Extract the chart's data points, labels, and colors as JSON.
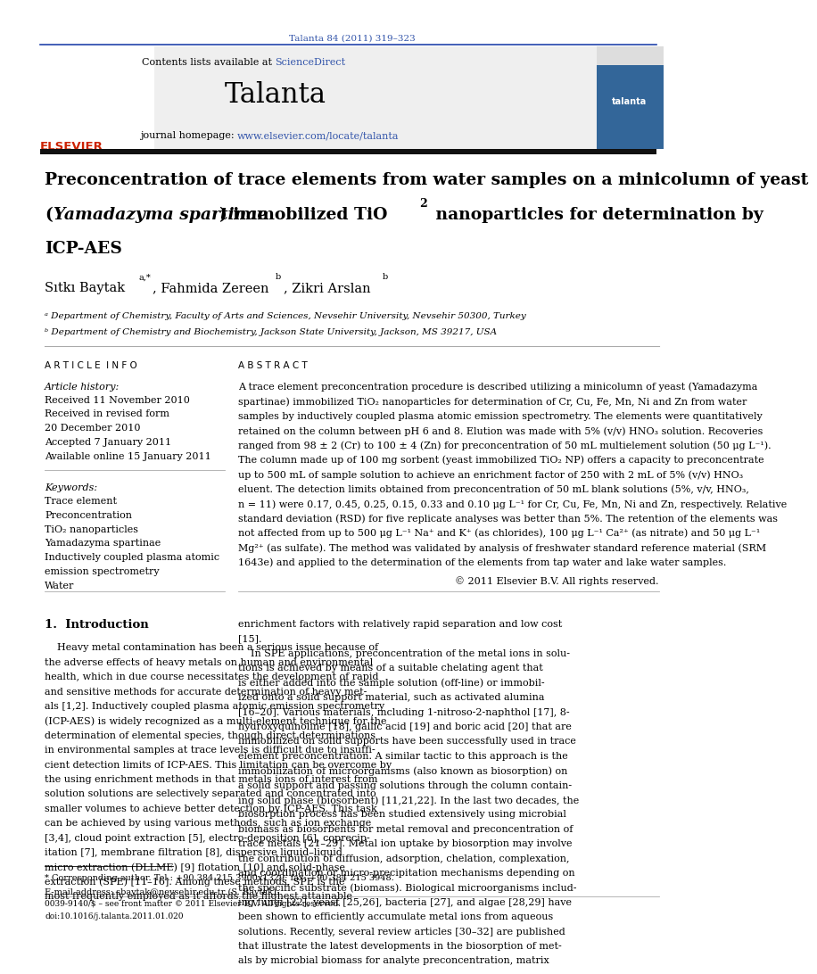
{
  "page_width": 9.92,
  "page_height": 13.23,
  "background_color": "#ffffff",
  "journal_ref": "Talanta 84 (2011) 319–323",
  "journal_ref_color": "#3355aa",
  "header_bg": "#efefef",
  "contents_line": "Contents lists available at ScienceDirect",
  "sciencedirect_color": "#3355aa",
  "journal_name": "Talanta",
  "journal_homepage_prefix": "journal homepage: ",
  "journal_homepage_url": "www.elsevier.com/locate/talanta",
  "title_line1": "Preconcentration of trace elements from water samples on a minicolumn of yeast",
  "title_line2a": "(",
  "title_line2b": "Yamadazyma spartinae",
  "title_line2c": ") immobilized TiO",
  "title_line2_sub": "2",
  "title_line2d": " nanoparticles for determination by",
  "title_line3": "ICP-AES",
  "author1": "Sıtkı Baytak",
  "author1_sup": "a,*",
  "author2": ", Fahmida Zereen",
  "author2_sup": "b",
  "author3": ", Zikri Arslan",
  "author3_sup": "b",
  "affil_a": "ᵃ Department of Chemistry, Faculty of Arts and Sciences, Nevsehir University, Nevsehir 50300, Turkey",
  "affil_b": "ᵇ Department of Chemistry and Biochemistry, Jackson State University, Jackson, MS 39217, USA",
  "article_info_header": "A R T I C L E  I N F O",
  "abstract_header": "A B S T R A C T",
  "article_history_label": "Article history:",
  "received1": "Received 11 November 2010",
  "revised": "Received in revised form",
  "revised2": "20 December 2010",
  "accepted": "Accepted 7 January 2011",
  "available": "Available online 15 January 2011",
  "keywords_label": "Keywords:",
  "keywords": [
    "Trace element",
    "Preconcentration",
    "TiO₂ nanoparticles",
    "Yamadazyma spartinae",
    "Inductively coupled plasma atomic",
    "emission spectrometry",
    "Water"
  ],
  "abstract_lines": [
    "A trace element preconcentration procedure is described utilizing a minicolumn of yeast (Yamadazyma",
    "spartinae) immobilized TiO₂ nanoparticles for determination of Cr, Cu, Fe, Mn, Ni and Zn from water",
    "samples by inductively coupled plasma atomic emission spectrometry. The elements were quantitatively",
    "retained on the column between pH 6 and 8. Elution was made with 5% (v/v) HNO₃ solution. Recoveries",
    "ranged from 98 ± 2 (Cr) to 100 ± 4 (Zn) for preconcentration of 50 mL multielement solution (50 μg L⁻¹).",
    "The column made up of 100 mg sorbent (yeast immobilized TiO₂ NP) offers a capacity to preconcentrate",
    "up to 500 mL of sample solution to achieve an enrichment factor of 250 with 2 mL of 5% (v/v) HNO₃",
    "eluent. The detection limits obtained from preconcentration of 50 mL blank solutions (5%, v/v, HNO₃,",
    "n = 11) were 0.17, 0.45, 0.25, 0.15, 0.33 and 0.10 μg L⁻¹ for Cr, Cu, Fe, Mn, Ni and Zn, respectively. Relative",
    "standard deviation (RSD) for five replicate analyses was better than 5%. The retention of the elements was",
    "not affected from up to 500 μg L⁻¹ Na⁺ and K⁺ (as chlorides), 100 μg L⁻¹ Ca²⁺ (as nitrate) and 50 μg L⁻¹",
    "Mg²⁺ (as sulfate). The method was validated by analysis of freshwater standard reference material (SRM",
    "1643e) and applied to the determination of the elements from tap water and lake water samples."
  ],
  "copyright": "© 2011 Elsevier B.V. All rights reserved.",
  "intro_header": "1.  Introduction",
  "intro_left_lines": [
    "    Heavy metal contamination has been a serious issue because of",
    "the adverse effects of heavy metals on human and environmental",
    "health, which in due course necessitates the development of rapid",
    "and sensitive methods for accurate determination of heavy met-",
    "als [1,2]. Inductively coupled plasma atomic emission spectrometry",
    "(ICP-AES) is widely recognized as a multi-element technique for the",
    "determination of elemental species, though direct determinations",
    "in environmental samples at trace levels is difficult due to insuffi-",
    "cient detection limits of ICP-AES. This limitation can be overcome by",
    "the using enrichment methods in that metals ions of interest from",
    "solution solutions are selectively separated and concentrated into",
    "smaller volumes to achieve better detection by ICP-AES. This task",
    "can be achieved by using various methods, such as ion exchange",
    "[3,4], cloud point extraction [5], electro-deposition [6], coprecip-",
    "itation [7], membrane filtration [8], dispersive liquid–liquid",
    "micro extraction (DLLME) [9] flotation [10] and solid-phase",
    "extraction (SPE) [11–16]. Among these methods, SPE is the",
    "most frequently employed as it affords the highest attainable"
  ],
  "intro_right_lines": [
    "enrichment factors with relatively rapid separation and low cost",
    "[15].",
    "    In SPE applications, preconcentration of the metal ions in solu-",
    "tions is achieved by means of a suitable chelating agent that",
    "is either added into the sample solution (off-line) or immobil-",
    "ized onto a solid support material, such as activated alumina",
    "[16–20]. Various materials, including 1-nitroso-2-naphthol [17], 8-",
    "hydroxyquinoline [18], gallic acid [19] and boric acid [20] that are",
    "immobilized on solid supports have been successfully used in trace",
    "element preconcentration. A similar tactic to this approach is the",
    "immobilization of microorganisms (also known as biosorption) on",
    "a solid support and passing solutions through the column contain-",
    "ing solid phase (biosorbent) [11,21,22]. In the last two decades, the",
    "biosorption process has been studied extensively using microbial",
    "biomass as biosorbents for metal removal and preconcentration of",
    "trace metals [21–29]. Metal ion uptake by biosorption may involve",
    "the contribution of diffusion, adsorption, chelation, complexation,",
    "and coordination or micro-precipitation mechanisms depending on",
    "the specific substrate (biomass). Biological microorganisms includ-",
    "ing fungi [22], yeast [25,26], bacteria [27], and algae [28,29] have",
    "been shown to efficiently accumulate metal ions from aqueous",
    "solutions. Recently, several review articles [30–32] are published",
    "that illustrate the latest developments in the biosorption of met-",
    "als by microbial biomass for analyte preconcentration, matrix"
  ],
  "footnote_line1": "* Corresponding author. Tel.: +90 384 215 3900x1329; fax: +90 384 215 3948.",
  "footnote_line2": "E-mail address: sbaytak@nevsehir.edu.tr (S. Baytak).",
  "bottom_line1": "0039-9140/$ – see front matter © 2011 Elsevier B.V. All rights reserved.",
  "bottom_line2": "doi:10.1016/j.talanta.2011.01.020",
  "elsevier_color": "#cc2200",
  "link_color": "#3355aa",
  "rule_color": "#2244aa",
  "gray_rule_color": "#aaaaaa"
}
